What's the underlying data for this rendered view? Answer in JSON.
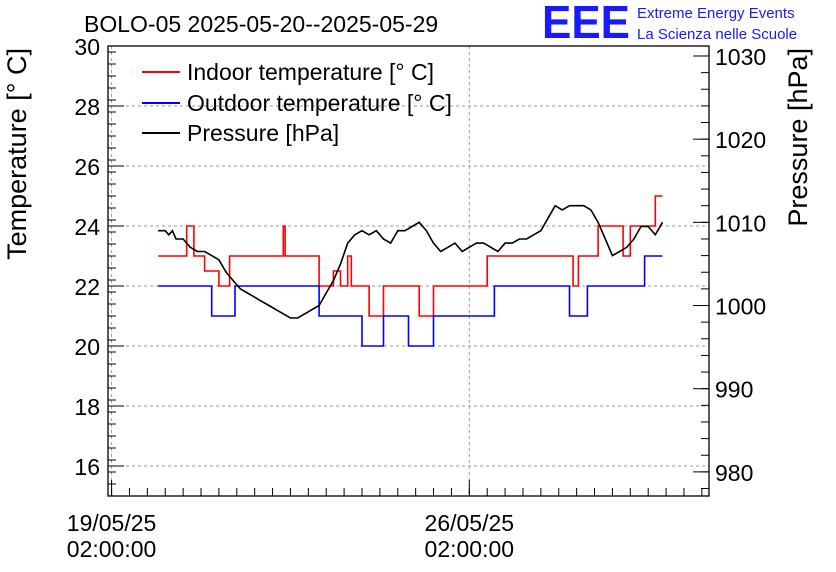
{
  "chart_data": {
    "type": "line",
    "title": "BOLO-05 2025-05-20--2025-05-29",
    "ylabel": "Temperature [° C]",
    "y2label": "Pressure [hPa]",
    "ylim": [
      15,
      30
    ],
    "y2lim": [
      977.1,
      1031.2
    ],
    "yticks": [
      "16",
      "18",
      "20",
      "22",
      "24",
      "26",
      "28",
      "30"
    ],
    "y2ticks": [
      "980",
      "990",
      "1000",
      "1010",
      "1020",
      "1030"
    ],
    "xlim_days": [
      -0.1,
      16.7
    ],
    "xticks": [
      {
        "day": 0,
        "line1": "19/05/25",
        "line2": "02:00:00"
      },
      {
        "day": 10,
        "line1": "26/05/25",
        "line2": "02:00:00"
      }
    ],
    "grid": true,
    "legend": {
      "position": "top-left",
      "entries": [
        {
          "label": "Indoor temperature [° C]",
          "color": "#ff0000"
        },
        {
          "label": "Outdoor temperature [° C]",
          "color": "#0000ff"
        },
        {
          "label": "Pressure [hPa]",
          "color": "#000000"
        }
      ]
    },
    "series": [
      {
        "name": "Indoor temperature [° C]",
        "axis": "left",
        "color": "#ff0000",
        "step": true,
        "points": [
          [
            1.3,
            23
          ],
          [
            2.1,
            23
          ],
          [
            2.1,
            24
          ],
          [
            2.3,
            24
          ],
          [
            2.3,
            23
          ],
          [
            2.6,
            23
          ],
          [
            2.6,
            22.5
          ],
          [
            3,
            22.5
          ],
          [
            3,
            22
          ],
          [
            3.3,
            22
          ],
          [
            3.3,
            23
          ],
          [
            4.8,
            23
          ],
          [
            4.8,
            24
          ],
          [
            4.85,
            24
          ],
          [
            4.85,
            23
          ],
          [
            5.8,
            23
          ],
          [
            5.8,
            22
          ],
          [
            6.2,
            22
          ],
          [
            6.2,
            22.5
          ],
          [
            6.4,
            22.5
          ],
          [
            6.4,
            22
          ],
          [
            6.6,
            22
          ],
          [
            6.6,
            23
          ],
          [
            6.7,
            23
          ],
          [
            6.7,
            22
          ],
          [
            7.2,
            22
          ],
          [
            7.2,
            21
          ],
          [
            7.6,
            21
          ],
          [
            7.6,
            22
          ],
          [
            8.6,
            22
          ],
          [
            8.6,
            21
          ],
          [
            9,
            21
          ],
          [
            9,
            22
          ],
          [
            10.5,
            22
          ],
          [
            10.5,
            23
          ],
          [
            12.9,
            23
          ],
          [
            12.9,
            22
          ],
          [
            13.05,
            22
          ],
          [
            13.05,
            23
          ],
          [
            13.6,
            23
          ],
          [
            13.6,
            24
          ],
          [
            14.3,
            24
          ],
          [
            14.3,
            23
          ],
          [
            14.5,
            23
          ],
          [
            14.5,
            24
          ],
          [
            15.2,
            24
          ],
          [
            15.2,
            25
          ],
          [
            15.4,
            25
          ]
        ]
      },
      {
        "name": "Outdoor temperature [° C]",
        "axis": "left",
        "color": "#0000ff",
        "step": true,
        "points": [
          [
            1.3,
            22
          ],
          [
            2.8,
            22
          ],
          [
            2.8,
            21
          ],
          [
            3.45,
            21
          ],
          [
            3.45,
            22
          ],
          [
            5.8,
            22
          ],
          [
            5.8,
            21
          ],
          [
            7,
            21
          ],
          [
            7,
            20
          ],
          [
            7.6,
            20
          ],
          [
            7.6,
            21
          ],
          [
            8.3,
            21
          ],
          [
            8.3,
            20
          ],
          [
            9,
            20
          ],
          [
            9,
            21
          ],
          [
            10.7,
            21
          ],
          [
            10.7,
            22
          ],
          [
            12.8,
            22
          ],
          [
            12.8,
            21
          ],
          [
            13.3,
            21
          ],
          [
            13.3,
            22
          ],
          [
            14.9,
            22
          ],
          [
            14.9,
            23
          ],
          [
            15.4,
            23
          ]
        ]
      },
      {
        "name": "Pressure [hPa]",
        "axis": "right",
        "color": "#000000",
        "step": false,
        "points": [
          [
            1.3,
            1009
          ],
          [
            1.5,
            1009
          ],
          [
            1.6,
            1008.5
          ],
          [
            1.7,
            1009
          ],
          [
            1.8,
            1008
          ],
          [
            2.0,
            1008
          ],
          [
            2.2,
            1007
          ],
          [
            2.4,
            1006.5
          ],
          [
            2.6,
            1006.5
          ],
          [
            2.8,
            1006
          ],
          [
            3.0,
            1005.5
          ],
          [
            3.2,
            1004
          ],
          [
            3.4,
            1003
          ],
          [
            3.6,
            1002
          ],
          [
            3.8,
            1001.5
          ],
          [
            4.0,
            1001
          ],
          [
            4.2,
            1000.5
          ],
          [
            4.4,
            1000
          ],
          [
            4.6,
            999.5
          ],
          [
            4.8,
            999
          ],
          [
            5.0,
            998.5
          ],
          [
            5.2,
            998.5
          ],
          [
            5.4,
            999
          ],
          [
            5.6,
            999.5
          ],
          [
            5.8,
            1000
          ],
          [
            6.0,
            1001.5
          ],
          [
            6.2,
            1003
          ],
          [
            6.4,
            1005
          ],
          [
            6.6,
            1007.5
          ],
          [
            6.8,
            1008.5
          ],
          [
            7.0,
            1009
          ],
          [
            7.2,
            1008.5
          ],
          [
            7.4,
            1009
          ],
          [
            7.6,
            1008
          ],
          [
            7.8,
            1007.5
          ],
          [
            8.0,
            1009
          ],
          [
            8.2,
            1009
          ],
          [
            8.4,
            1009.5
          ],
          [
            8.6,
            1010
          ],
          [
            8.8,
            1009
          ],
          [
            9.0,
            1007.5
          ],
          [
            9.2,
            1006.5
          ],
          [
            9.4,
            1007
          ],
          [
            9.6,
            1007.5
          ],
          [
            9.8,
            1006.5
          ],
          [
            10.0,
            1007
          ],
          [
            10.2,
            1007.5
          ],
          [
            10.4,
            1007.5
          ],
          [
            10.6,
            1007
          ],
          [
            10.8,
            1006.5
          ],
          [
            11.0,
            1007.5
          ],
          [
            11.2,
            1007.5
          ],
          [
            11.4,
            1008
          ],
          [
            11.6,
            1008
          ],
          [
            11.8,
            1008.5
          ],
          [
            12.0,
            1009
          ],
          [
            12.2,
            1010.5
          ],
          [
            12.4,
            1012
          ],
          [
            12.6,
            1011.5
          ],
          [
            12.8,
            1012
          ],
          [
            13.0,
            1012
          ],
          [
            13.2,
            1012
          ],
          [
            13.4,
            1011.5
          ],
          [
            13.6,
            1010
          ],
          [
            13.8,
            1008
          ],
          [
            14.0,
            1006
          ],
          [
            14.2,
            1006.5
          ],
          [
            14.4,
            1007
          ],
          [
            14.6,
            1008
          ],
          [
            14.8,
            1009.5
          ],
          [
            15.0,
            1009.5
          ],
          [
            15.2,
            1008.5
          ],
          [
            15.4,
            1010
          ]
        ]
      }
    ]
  },
  "logo": {
    "letters": "EEE",
    "line1": "Extreme Energy Events",
    "line2": "La Scienza nelle Scuole",
    "color": "#1a1aff"
  }
}
